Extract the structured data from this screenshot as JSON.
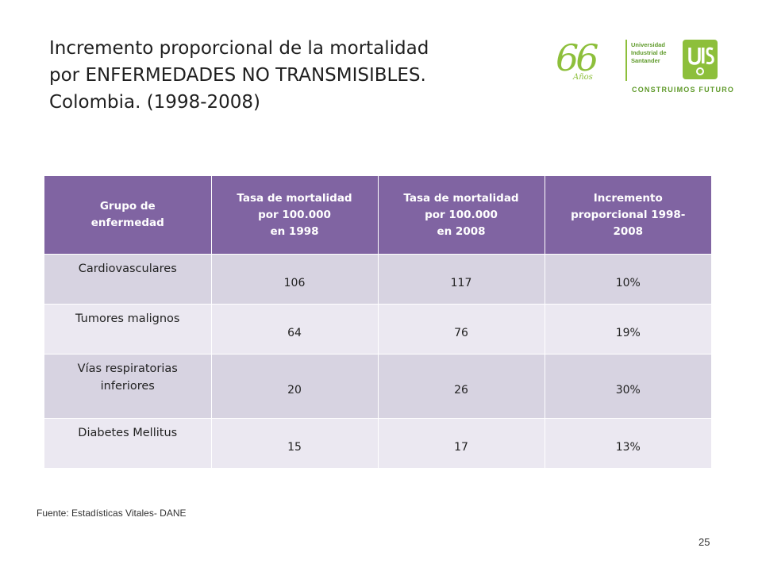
{
  "title": {
    "line1": "Incremento proporcional de la mortalidad",
    "line2": "por ENFERMEDADES NO TRANSMISIBLES.",
    "line3": "Colombia. (1998-2008)"
  },
  "logo": {
    "anniversary": "66",
    "anniversary_sub": "Años",
    "university_line1": "Universidad",
    "university_line2": "Industrial de",
    "university_line3": "Santander",
    "mark_letters": "UIS",
    "tagline": "CONSTRUIMOS FUTURO",
    "brand_color": "#8dbf3b"
  },
  "table": {
    "header_color": "#8064a2",
    "headers": [
      [
        "Grupo de",
        "enfermedad"
      ],
      [
        "Tasa de mortalidad",
        "por 100.000",
        "en 1998"
      ],
      [
        "Tasa de mortalidad",
        "por 100.000",
        "en 2008"
      ],
      [
        "Incremento",
        "proporcional 1998-",
        "2008"
      ]
    ],
    "rows": [
      {
        "group": [
          "Cardiovasculares"
        ],
        "rate_1998": "106",
        "rate_2008": "117",
        "increase": "10%"
      },
      {
        "group": [
          "Tumores malignos"
        ],
        "rate_1998": "64",
        "rate_2008": "76",
        "increase": "19%"
      },
      {
        "group": [
          "Vías respiratorias",
          "inferiores"
        ],
        "rate_1998": "20",
        "rate_2008": "26",
        "increase": "30%"
      },
      {
        "group": [
          "Diabetes Mellitus"
        ],
        "rate_1998": "15",
        "rate_2008": "17",
        "increase": "13%"
      }
    ]
  },
  "source": "Fuente: Estadísticas Vitales- DANE",
  "page_number": "25"
}
